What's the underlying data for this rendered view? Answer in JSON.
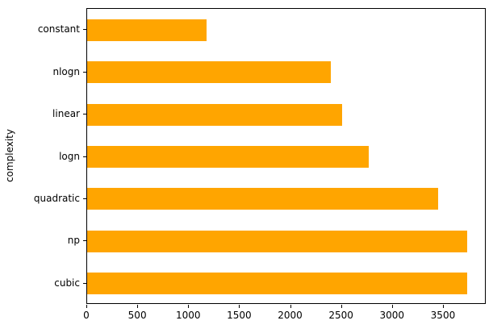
{
  "chart_data": {
    "type": "bar",
    "orientation": "horizontal",
    "title": "",
    "xlabel": "",
    "ylabel": "complexity",
    "categories_top_to_bottom": [
      "constant",
      "nlogn",
      "linear",
      "logn",
      "quadratic",
      "np",
      "cubic"
    ],
    "values_top_to_bottom": [
      1175,
      2390,
      2500,
      2760,
      3445,
      3730,
      3730
    ],
    "series": [
      {
        "name": "complexity",
        "categories": [
          "cubic",
          "np",
          "quadratic",
          "logn",
          "linear",
          "nlogn",
          "constant"
        ],
        "values": [
          3730,
          3730,
          3445,
          2760,
          2500,
          2390,
          1175
        ]
      }
    ],
    "x_ticks": [
      0,
      500,
      1000,
      1500,
      2000,
      2500,
      3000,
      3500
    ],
    "xlim": [
      0,
      3920
    ],
    "grid": false,
    "legend": "none",
    "bar_color": "#FFA500",
    "background_color": "#FFFFFF",
    "axis_color": "#000000"
  }
}
